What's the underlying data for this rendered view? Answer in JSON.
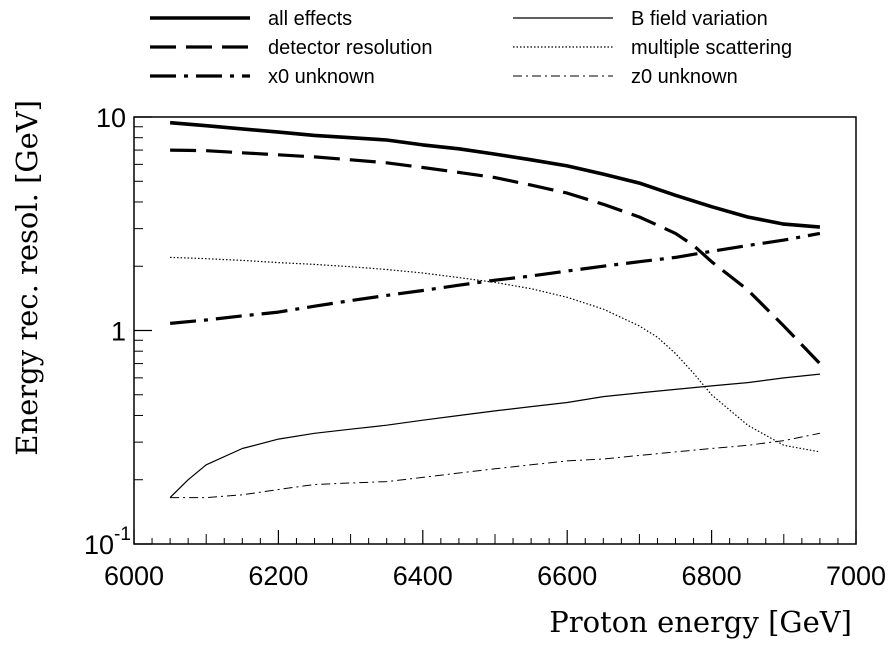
{
  "chart_data": {
    "type": "line",
    "xlabel": "Proton energy [GeV]",
    "ylabel": "Energy rec. resol. [GeV]",
    "xlim": [
      6000,
      7000
    ],
    "ylim": [
      0.1,
      10
    ],
    "y_scale": "log",
    "grid": false,
    "legend_position": "top",
    "x_ticks": [
      {
        "value": 6000,
        "label": "6000"
      },
      {
        "value": 6200,
        "label": "6200"
      },
      {
        "value": 6400,
        "label": "6400"
      },
      {
        "value": 6600,
        "label": "6600"
      },
      {
        "value": 6800,
        "label": "6800"
      },
      {
        "value": 7000,
        "label": "7000"
      }
    ],
    "y_ticks": [
      {
        "value": 0.1,
        "base": "10",
        "exp": "-1"
      },
      {
        "value": 1,
        "base": "1",
        "exp": ""
      },
      {
        "value": 10,
        "base": "10",
        "exp": ""
      }
    ],
    "series": [
      {
        "name": "all effects",
        "style": "thick-solid",
        "x": [
          6050,
          6100,
          6150,
          6200,
          6250,
          6300,
          6350,
          6400,
          6450,
          6500,
          6550,
          6600,
          6650,
          6700,
          6750,
          6800,
          6850,
          6900,
          6950
        ],
        "y": [
          9.4,
          9.1,
          8.8,
          8.5,
          8.2,
          8.0,
          7.8,
          7.4,
          7.1,
          6.7,
          6.3,
          5.9,
          5.4,
          4.9,
          4.3,
          3.8,
          3.4,
          3.15,
          3.05
        ]
      },
      {
        "name": "detector resolution",
        "style": "long-dash",
        "x": [
          6050,
          6100,
          6150,
          6200,
          6250,
          6300,
          6350,
          6400,
          6450,
          6500,
          6550,
          6600,
          6650,
          6700,
          6750,
          6775,
          6800,
          6850,
          6900,
          6950
        ],
        "y": [
          7.0,
          6.95,
          6.8,
          6.65,
          6.5,
          6.3,
          6.1,
          5.8,
          5.5,
          5.2,
          4.8,
          4.4,
          3.9,
          3.4,
          2.85,
          2.5,
          2.1,
          1.55,
          1.05,
          0.7
        ]
      },
      {
        "name": "x0 unknown",
        "style": "dash-dot",
        "x": [
          6050,
          6100,
          6150,
          6200,
          6250,
          6300,
          6350,
          6400,
          6450,
          6500,
          6550,
          6600,
          6650,
          6700,
          6750,
          6800,
          6850,
          6900,
          6950
        ],
        "y": [
          1.08,
          1.12,
          1.17,
          1.22,
          1.3,
          1.38,
          1.46,
          1.54,
          1.63,
          1.72,
          1.8,
          1.9,
          2.0,
          2.1,
          2.2,
          2.35,
          2.5,
          2.65,
          2.85
        ]
      },
      {
        "name": "B field variation",
        "style": "thin-solid",
        "x": [
          6050,
          6075,
          6100,
          6150,
          6200,
          6250,
          6300,
          6350,
          6400,
          6450,
          6500,
          6550,
          6600,
          6650,
          6700,
          6750,
          6800,
          6850,
          6900,
          6950
        ],
        "y": [
          0.165,
          0.2,
          0.235,
          0.28,
          0.31,
          0.33,
          0.345,
          0.36,
          0.38,
          0.4,
          0.42,
          0.44,
          0.46,
          0.49,
          0.51,
          0.53,
          0.55,
          0.57,
          0.6,
          0.625
        ]
      },
      {
        "name": "multiple scattering",
        "style": "dotted",
        "x": [
          6050,
          6100,
          6150,
          6200,
          6250,
          6300,
          6350,
          6400,
          6450,
          6500,
          6550,
          6600,
          6650,
          6700,
          6725,
          6750,
          6775,
          6800,
          6850,
          6900,
          6950
        ],
        "y": [
          2.2,
          2.17,
          2.13,
          2.08,
          2.04,
          1.99,
          1.93,
          1.86,
          1.77,
          1.68,
          1.57,
          1.43,
          1.26,
          1.05,
          0.93,
          0.78,
          0.63,
          0.5,
          0.36,
          0.29,
          0.27
        ]
      },
      {
        "name": "z0 unknown",
        "style": "thin-dash-dot",
        "x": [
          6050,
          6100,
          6150,
          6200,
          6250,
          6300,
          6350,
          6400,
          6450,
          6500,
          6550,
          6600,
          6650,
          6700,
          6750,
          6800,
          6850,
          6900,
          6950
        ],
        "y": [
          0.165,
          0.165,
          0.17,
          0.18,
          0.19,
          0.193,
          0.196,
          0.205,
          0.215,
          0.225,
          0.235,
          0.245,
          0.25,
          0.26,
          0.27,
          0.28,
          0.29,
          0.305,
          0.33
        ]
      }
    ]
  }
}
